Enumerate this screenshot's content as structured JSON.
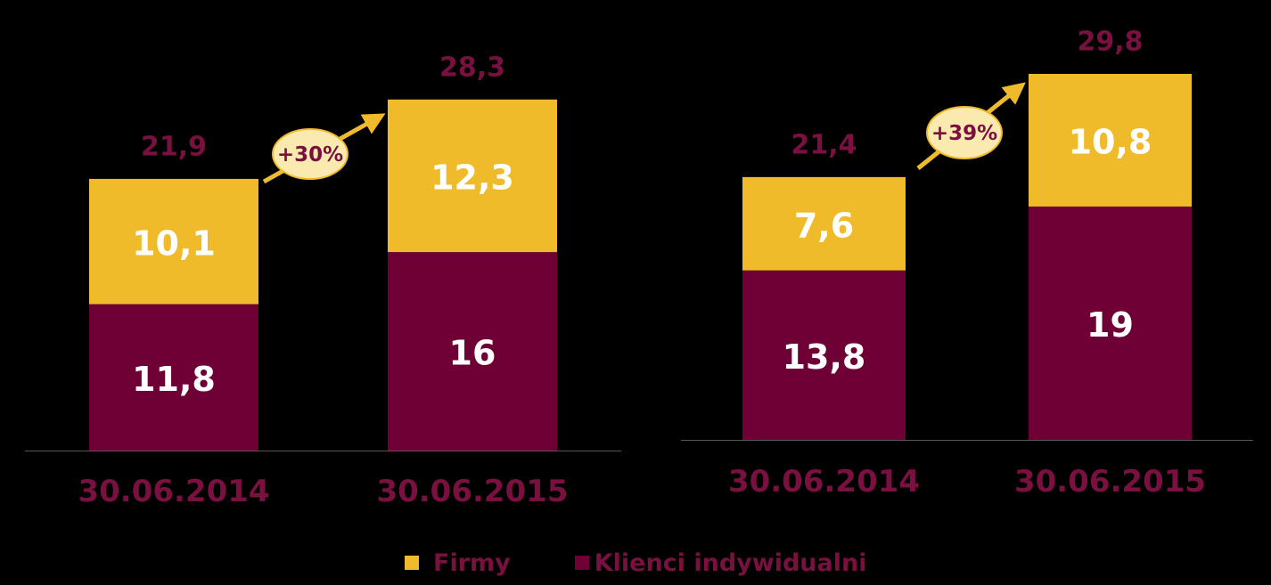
{
  "chart_data": [
    {
      "type": "bar",
      "stacked": true,
      "categories": [
        "30.06.2014",
        "30.06.2015"
      ],
      "series": [
        {
          "name": "Klienci indywidualni",
          "values": [
            11.8,
            16
          ],
          "labels": [
            "11,8",
            "16"
          ],
          "color": "#6e0035"
        },
        {
          "name": "Firmy",
          "values": [
            10.1,
            12.3
          ],
          "labels": [
            "10,1",
            "12,3"
          ],
          "color": "#f0bb2a"
        }
      ],
      "totals": [
        21.9,
        28.3
      ],
      "total_labels": [
        "21,9",
        "28,3"
      ],
      "growth_label": "+30%",
      "ylim": [
        0,
        29
      ]
    },
    {
      "type": "bar",
      "stacked": true,
      "categories": [
        "30.06.2014",
        "30.06.2015"
      ],
      "series": [
        {
          "name": "Klienci indywidualni",
          "values": [
            13.8,
            19
          ],
          "labels": [
            "13,8",
            "19"
          ],
          "color": "#6e0035"
        },
        {
          "name": "Firmy",
          "values": [
            7.6,
            10.8
          ],
          "labels": [
            "7,6",
            "10,8"
          ],
          "color": "#f0bb2a"
        }
      ],
      "totals": [
        21.4,
        29.8
      ],
      "total_labels": [
        "21,4",
        "29,8"
      ],
      "growth_label": "+39%",
      "ylim": [
        0,
        29.8
      ]
    }
  ],
  "legend": [
    {
      "label": "Firmy",
      "color": "#f0bb2a"
    },
    {
      "label": "Klienci indywidualni",
      "color": "#6e0035"
    }
  ],
  "colors": {
    "background": "#000000",
    "label_dark": "#7a1040",
    "arrow": "#f0bb2a",
    "bubble_fill": "#fbeab0",
    "axis": "#555555",
    "segment_text": "#ffffff"
  }
}
